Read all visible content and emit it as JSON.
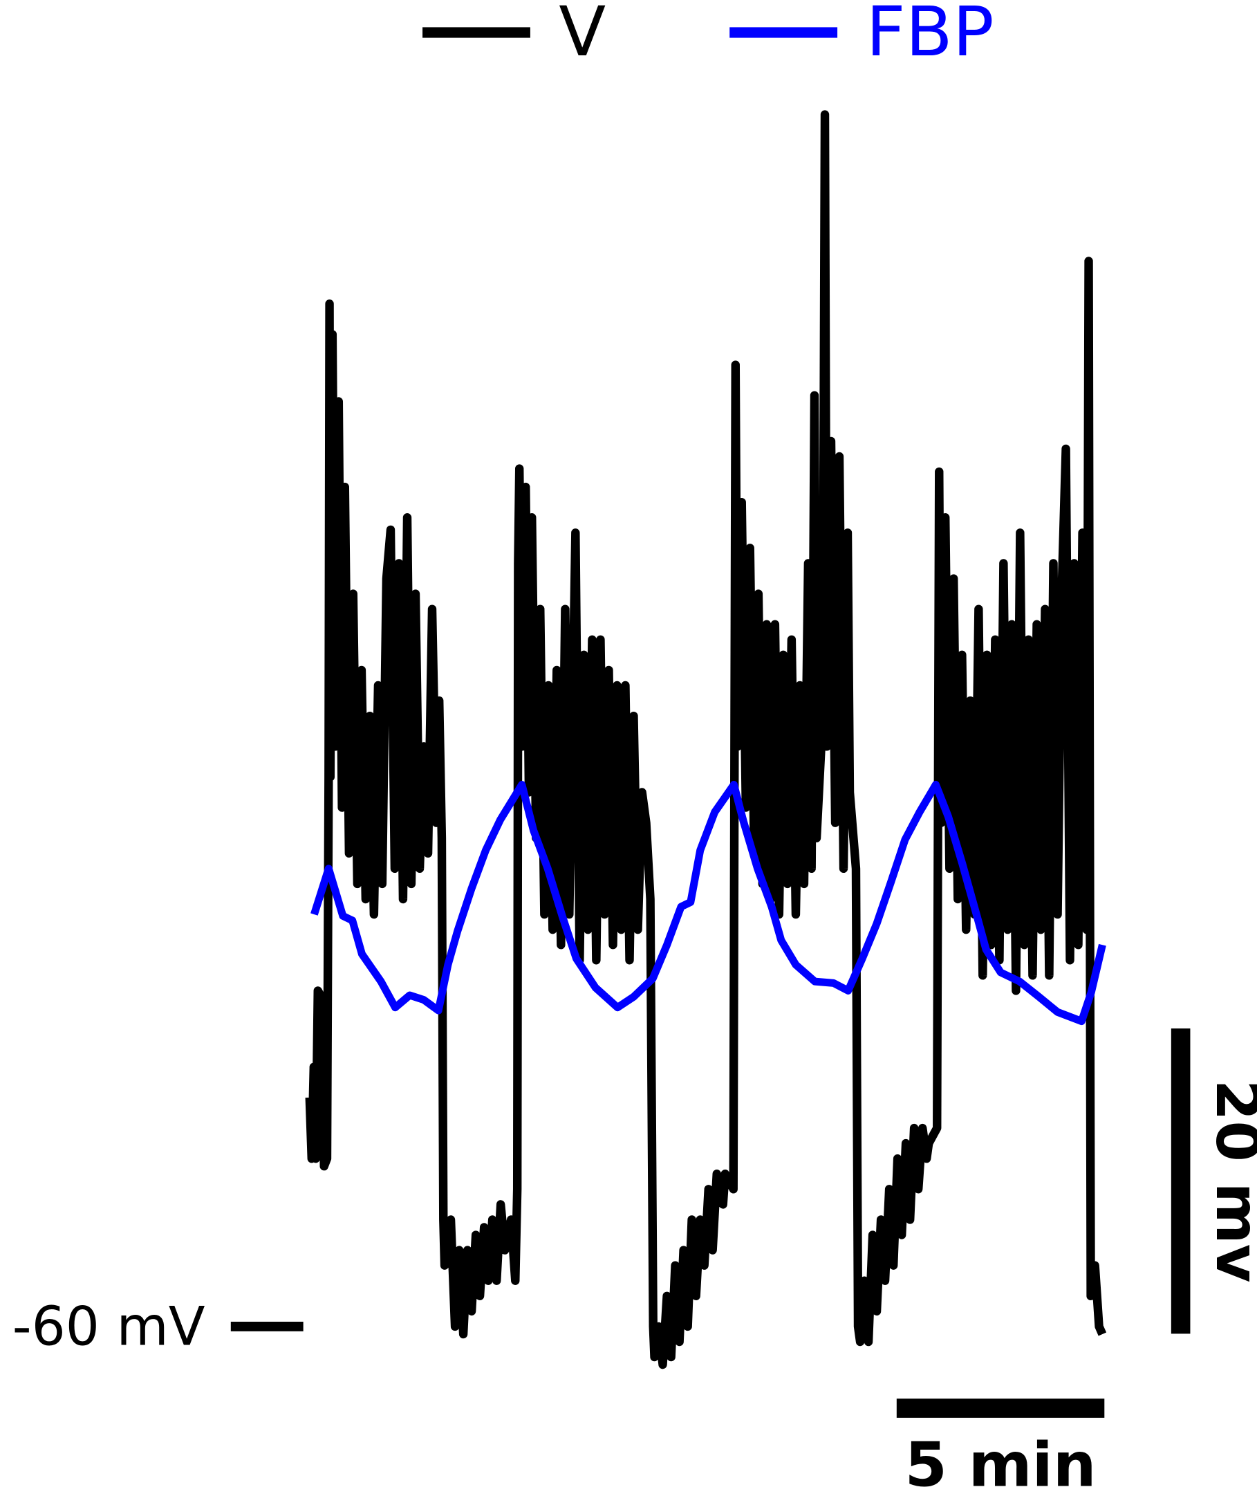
{
  "chart_data": {
    "type": "line",
    "series": [
      {
        "name": "V",
        "color": "#000000",
        "x": [
          0,
          0.05,
          0.1,
          0.15,
          0.2,
          0.3,
          0.35,
          0.42,
          0.46,
          0.48,
          0.5,
          0.55,
          0.62,
          0.7,
          0.78,
          0.85,
          0.95,
          1.05,
          1.15,
          1.25,
          1.35,
          1.45,
          1.55,
          1.65,
          1.75,
          1.85,
          1.95,
          2.05,
          2.15,
          2.25,
          2.35,
          2.45,
          2.55,
          2.65,
          2.75,
          2.85,
          2.95,
          3.05,
          3.12,
          3.18,
          3.22,
          3.25,
          3.4,
          3.5,
          3.6,
          3.7,
          3.8,
          3.9,
          4.0,
          4.1,
          4.2,
          4.3,
          4.4,
          4.5,
          4.6,
          4.7,
          4.85,
          4.95,
          5.0,
          5.02,
          5.05,
          5.12,
          5.2,
          5.28,
          5.35,
          5.45,
          5.55,
          5.65,
          5.75,
          5.85,
          5.95,
          6.05,
          6.15,
          6.25,
          6.4,
          6.5,
          6.6,
          6.7,
          6.8,
          6.9,
          7.0,
          7.1,
          7.2,
          7.3,
          7.4,
          7.5,
          7.6,
          7.7,
          7.8,
          7.9,
          8.0,
          8.1,
          8.2,
          8.27,
          8.3,
          8.4,
          8.5,
          8.6,
          8.7,
          8.8,
          8.9,
          9.0,
          9.1,
          9.2,
          9.3,
          9.4,
          9.5,
          9.6,
          9.7,
          9.8,
          9.95,
          10.0,
          10.2,
          10.25,
          10.3,
          10.4,
          10.5,
          10.6,
          10.7,
          10.8,
          10.9,
          11.0,
          11.1,
          11.2,
          11.3,
          11.4,
          11.5,
          11.6,
          11.7,
          11.8,
          11.9,
          12.0,
          12.08,
          12.15,
          12.2,
          12.35,
          12.4,
          12.45,
          12.55,
          12.65,
          12.75,
          12.85,
          12.95,
          13.0,
          13.15,
          13.2,
          13.25,
          13.35,
          13.45,
          13.55,
          13.65,
          13.75,
          13.85,
          13.95,
          14.05,
          14.15,
          14.25,
          14.35,
          14.45,
          14.55,
          14.65,
          14.75,
          14.85,
          14.9,
          15.1,
          15.15,
          15.2,
          15.3,
          15.4,
          15.5,
          15.6,
          15.7,
          15.8,
          15.9,
          16.0,
          16.1,
          16.2,
          16.3,
          16.4,
          16.5,
          16.6,
          16.7,
          16.8,
          16.9,
          17.0,
          17.1,
          17.2,
          17.3,
          17.4,
          17.5,
          17.6,
          17.7,
          17.8,
          17.9,
          18.0,
          18.1,
          18.2,
          18.3,
          18.4,
          18.5,
          18.6,
          18.7,
          18.75,
          18.8,
          18.9,
          19.0,
          19.08
        ],
        "values": [
          -45,
          -49,
          -43,
          -49,
          -38,
          -38.5,
          -49.5,
          -49,
          -24,
          7,
          -24,
          5,
          -22,
          0.6,
          -26,
          -5,
          -29,
          -12,
          -31,
          -17,
          -32,
          -20,
          -33,
          -18,
          -31,
          -11,
          -7.8,
          -30,
          -10,
          -32,
          -7,
          -31,
          -12,
          -30,
          -22,
          -29,
          -13,
          -27,
          -19,
          -28,
          -53,
          -56,
          -53,
          -60,
          -55,
          -60.5,
          -55,
          -59,
          -54,
          -58,
          -53.5,
          -57,
          -53,
          -57,
          -52,
          -55,
          -53,
          -57,
          -51,
          -10,
          -3.8,
          -22,
          -5,
          -25,
          -7,
          -28,
          -13,
          -33,
          -18,
          -34,
          -17,
          -35,
          -13,
          -33,
          -8,
          -36,
          -16,
          -34,
          -15,
          -36,
          -15,
          -33,
          -17,
          -35,
          -18,
          -34,
          -18,
          -36,
          -20,
          -34,
          -25,
          -27,
          -32,
          -60,
          -62,
          -60,
          -62.5,
          -58,
          -62,
          -56,
          -61,
          -55,
          -60,
          -53,
          -58,
          -53,
          -56,
          -51,
          -55,
          -50,
          -52,
          -50,
          -51,
          3,
          -22,
          -6,
          -26,
          -9,
          -29,
          -12,
          -31,
          -14,
          -32,
          -14,
          -33,
          -16,
          -31,
          -15,
          -33,
          -18,
          -31,
          -10,
          -30,
          1,
          -28,
          -20,
          19.4,
          -22,
          -2,
          -27,
          -3,
          -30,
          -8,
          -25,
          -30,
          -60,
          -61,
          -57,
          -61,
          -54,
          -59,
          -53,
          -57,
          -51,
          -56,
          -49,
          -54,
          -48,
          -53,
          -47,
          -51,
          -47,
          -49,
          -48,
          -47,
          -4,
          -27,
          -7,
          -30,
          -11,
          -32,
          -16,
          -34,
          -19,
          -33,
          -13,
          -37,
          -16,
          -35,
          -15,
          -36,
          -10,
          -34,
          -14,
          -38,
          -8,
          -35,
          -15,
          -37,
          -14,
          -34,
          -13,
          -37,
          -10,
          -33,
          -12,
          -2.5,
          -36,
          -10,
          -35,
          -8,
          -34,
          9.8,
          -58,
          -56,
          -60,
          -60.5
        ]
      },
      {
        "name": "FBP",
        "color": "#0000ff",
        "x": [
          0.11,
          0.46,
          0.8,
          1.03,
          1.26,
          1.72,
          2.06,
          2.41,
          2.75,
          3.1,
          3.33,
          3.56,
          3.9,
          4.24,
          4.59,
          5.11,
          5.39,
          5.73,
          6.08,
          6.42,
          6.88,
          7.41,
          7.8,
          8.26,
          8.6,
          8.94,
          9.17,
          9.4,
          9.75,
          10.21,
          10.44,
          10.78,
          11.12,
          11.35,
          11.7,
          12.16,
          12.61,
          12.96,
          13.3,
          13.65,
          13.99,
          14.33,
          14.68,
          15.07,
          15.37,
          15.71,
          16.06,
          16.28,
          16.63,
          17.09,
          17.55,
          18.0,
          18.58,
          18.81,
          19.08
        ],
        "values": [
          -33,
          -30,
          -33.1,
          -33.4,
          -35.6,
          -37.4,
          -39.1,
          -38.3,
          -38.6,
          -39.3,
          -36.3,
          -34.1,
          -31.3,
          -28.8,
          -26.8,
          -24.5,
          -27.5,
          -30,
          -33.1,
          -35.9,
          -37.8,
          -39.1,
          -38.4,
          -37.2,
          -35,
          -32.5,
          -32.2,
          -28.8,
          -26.3,
          -24.5,
          -26.9,
          -30,
          -32.5,
          -34.7,
          -36.3,
          -37.4,
          -37.5,
          -38,
          -35.9,
          -33.6,
          -30.9,
          -28.1,
          -26.3,
          -24.5,
          -26.6,
          -29.7,
          -33.1,
          -35.3,
          -36.8,
          -37.4,
          -38.4,
          -39.4,
          -40,
          -38.1,
          -35
        ]
      }
    ],
    "xlim": [
      -7.45,
      22.8
    ],
    "ylim": [
      -71.1,
      26.9
    ],
    "reference": {
      "value": -60,
      "label": "-60 mV"
    },
    "scale_bars": [
      {
        "axis": "y",
        "value": 20,
        "label": "20 mv"
      },
      {
        "axis": "x",
        "value": 5,
        "label": "5 min"
      }
    ],
    "legend": "top"
  }
}
